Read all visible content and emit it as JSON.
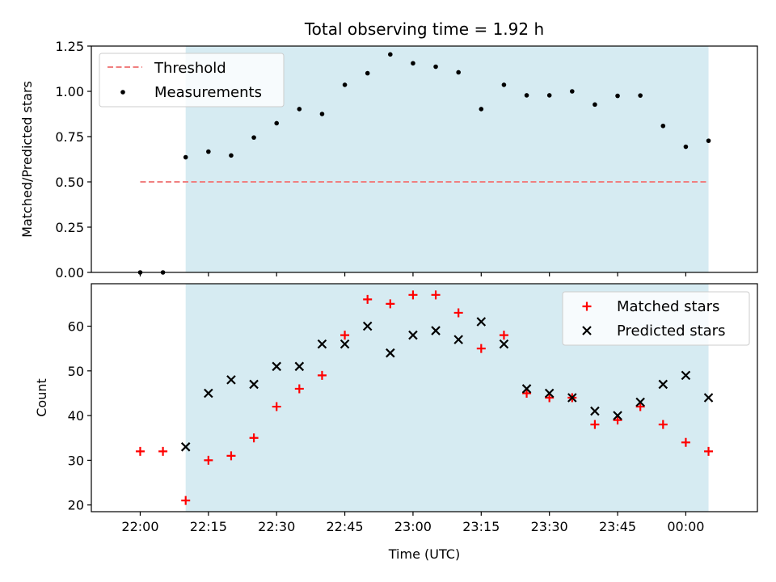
{
  "title": "Total observing time = 1.92 h",
  "colors": {
    "threshold": "#f08080",
    "measurement": "#000000",
    "matched": "#ff0000",
    "predicted": "#000000",
    "observing_span": "#add8e6"
  },
  "chart_data": [
    {
      "type": "scatter",
      "xlabel": "",
      "ylabel": "Matched/Predicted stars",
      "ylim": [
        0,
        1.25
      ],
      "yticks": [
        "0.00",
        "0.25",
        "0.50",
        "0.75",
        "1.00",
        "1.25"
      ],
      "xticks": [
        "22:00",
        "22:15",
        "22:30",
        "22:45",
        "23:00",
        "23:15",
        "23:30",
        "23:45",
        "00:00"
      ],
      "observing_span": [
        "22:10",
        "00:05"
      ],
      "legend": {
        "position": "top-left",
        "entries": [
          "Threshold",
          "Measurements"
        ]
      },
      "threshold": {
        "name": "Threshold",
        "y": 0.5,
        "x_range": [
          "22:00",
          "00:05"
        ],
        "style": "dashed"
      },
      "series": [
        {
          "name": "Measurements",
          "x": [
            "22:00",
            "22:05",
            "22:10",
            "22:15",
            "22:20",
            "22:25",
            "22:30",
            "22:35",
            "22:40",
            "22:45",
            "22:50",
            "22:55",
            "23:00",
            "23:05",
            "23:10",
            "23:15",
            "23:20",
            "23:25",
            "23:30",
            "23:35",
            "23:40",
            "23:45",
            "23:50",
            "23:55",
            "00:00",
            "00:05"
          ],
          "y": [
            0.0,
            0.0,
            0.636,
            0.667,
            0.646,
            0.745,
            0.824,
            0.902,
            0.875,
            1.036,
            1.1,
            1.204,
            1.155,
            1.136,
            1.105,
            0.902,
            1.036,
            0.978,
            0.978,
            1.0,
            0.927,
            0.975,
            0.977,
            0.809,
            0.694,
            0.727
          ]
        }
      ]
    },
    {
      "type": "scatter",
      "xlabel": "Time (UTC)",
      "ylabel": "Count",
      "ylim": [
        18.5,
        69.5
      ],
      "yticks": [
        "20",
        "30",
        "40",
        "50",
        "60"
      ],
      "xticks": [
        "22:00",
        "22:15",
        "22:30",
        "22:45",
        "23:00",
        "23:15",
        "23:30",
        "23:45",
        "00:00"
      ],
      "observing_span": [
        "22:10",
        "00:05"
      ],
      "legend": {
        "position": "top-right",
        "entries": [
          "Matched stars",
          "Predicted stars"
        ]
      },
      "series": [
        {
          "name": "Matched stars",
          "marker": "plus",
          "x": [
            "22:00",
            "22:05",
            "22:10",
            "22:15",
            "22:20",
            "22:25",
            "22:30",
            "22:35",
            "22:40",
            "22:45",
            "22:50",
            "22:55",
            "23:00",
            "23:05",
            "23:10",
            "23:15",
            "23:20",
            "23:25",
            "23:30",
            "23:35",
            "23:40",
            "23:45",
            "23:50",
            "23:55",
            "00:00",
            "00:05"
          ],
          "y": [
            32,
            32,
            21,
            30,
            31,
            35,
            42,
            46,
            49,
            58,
            66,
            65,
            67,
            67,
            63,
            55,
            58,
            45,
            44,
            44,
            38,
            39,
            42,
            38,
            34,
            32
          ]
        },
        {
          "name": "Predicted stars",
          "marker": "x",
          "x": [
            "22:10",
            "22:15",
            "22:20",
            "22:25",
            "22:30",
            "22:35",
            "22:40",
            "22:45",
            "22:50",
            "22:55",
            "23:00",
            "23:05",
            "23:10",
            "23:15",
            "23:20",
            "23:25",
            "23:30",
            "23:35",
            "23:40",
            "23:45",
            "23:50",
            "23:55",
            "00:00",
            "00:05"
          ],
          "y": [
            33,
            45,
            48,
            47,
            51,
            51,
            56,
            56,
            60,
            54,
            58,
            59,
            57,
            61,
            56,
            46,
            45,
            44,
            41,
            40,
            43,
            47,
            49,
            44
          ]
        }
      ]
    }
  ]
}
